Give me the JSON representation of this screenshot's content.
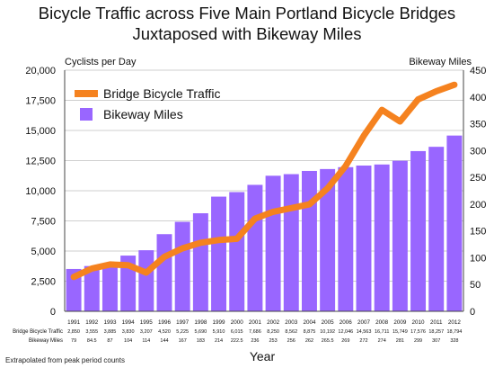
{
  "chart_data": {
    "type": "bar",
    "title_line1": "Bicycle Traffic across Five Main Portland Bicycle Bridges",
    "title_line2": "Juxtaposed with Bikeway Miles",
    "ylabel_left": "Cyclists per Day",
    "ylabel_right": "Bikeway Miles",
    "xlabel": "Year",
    "footnote": "Extrapolated from peak period counts",
    "ylim_left": [
      0,
      20000
    ],
    "yticks_left": [
      "0",
      "2,500",
      "5,000",
      "7,500",
      "10,000",
      "12,500",
      "15,000",
      "17,500",
      "20,000"
    ],
    "ylim_right": [
      0,
      450
    ],
    "yticks_right": [
      "0",
      "50",
      "100",
      "150",
      "200",
      "250",
      "300",
      "350",
      "400",
      "450"
    ],
    "categories": [
      "1991",
      "1992",
      "1993",
      "1994",
      "1995",
      "1996",
      "1997",
      "1998",
      "1999",
      "2000",
      "2001",
      "2002",
      "2003",
      "2004",
      "2005",
      "2006",
      "2007",
      "2008",
      "2009",
      "2010",
      "2011",
      "2012"
    ],
    "legend": {
      "placement": "top-left"
    },
    "series": [
      {
        "name": "Bridge Bicycle Traffic",
        "kind": "line",
        "axis": "left",
        "color": "#f5821f",
        "values": [
          2850,
          3555,
          3885,
          3830,
          3207,
          4520,
          5225,
          5690,
          5910,
          6015,
          7686,
          8250,
          8562,
          8875,
          10192,
          12046,
          14563,
          16711,
          15749,
          17576,
          18257,
          18794
        ],
        "table_row_label": "Bridge Bicycle Traffic",
        "table_values": [
          "2,850",
          "3,555",
          "3,885",
          "3,830",
          "3,207",
          "4,520",
          "5,225",
          "5,690",
          "5,910",
          "6,015",
          "7,686",
          "8,250",
          "8,562",
          "8,875",
          "10,192",
          "12,046",
          "14,563",
          "16,711",
          "15,749",
          "17,576",
          "18,257",
          "18,794"
        ]
      },
      {
        "name": "Bikeway Miles",
        "kind": "bar",
        "axis": "right",
        "color": "#9966ff",
        "values": [
          79,
          84.5,
          87,
          104,
          114,
          144,
          167,
          183,
          214,
          222.5,
          236,
          253,
          256,
          262,
          265.5,
          269,
          272,
          274,
          281,
          299,
          307,
          328
        ],
        "table_row_label": "Bikeway Miles",
        "table_values": [
          "79",
          "84.5",
          "87",
          "104",
          "114",
          "144",
          "167",
          "183",
          "214",
          "222.5",
          "236",
          "253",
          "256",
          "262",
          "265.5",
          "269",
          "272",
          "274",
          "281",
          "299",
          "307",
          "328"
        ]
      }
    ]
  }
}
